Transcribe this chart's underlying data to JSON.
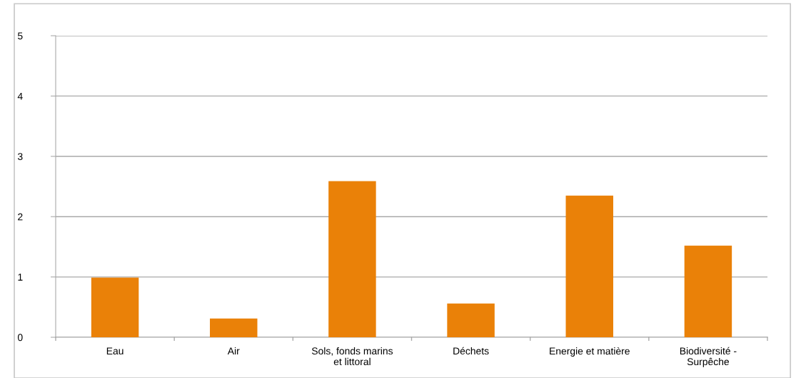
{
  "chart_data": {
    "type": "bar",
    "categories": [
      "Eau",
      "Air",
      "Sols, fonds marins\net littoral",
      "Déchets",
      "Energie et matière",
      "Biodiversité -\nSurpêche"
    ],
    "values": [
      0.99,
      0.31,
      2.59,
      0.56,
      2.35,
      1.52
    ],
    "color": "#ea8108",
    "ylim": [
      0,
      5
    ],
    "yticks": [
      0,
      1,
      2,
      3,
      4,
      5
    ],
    "grid": "y",
    "legend": false
  }
}
